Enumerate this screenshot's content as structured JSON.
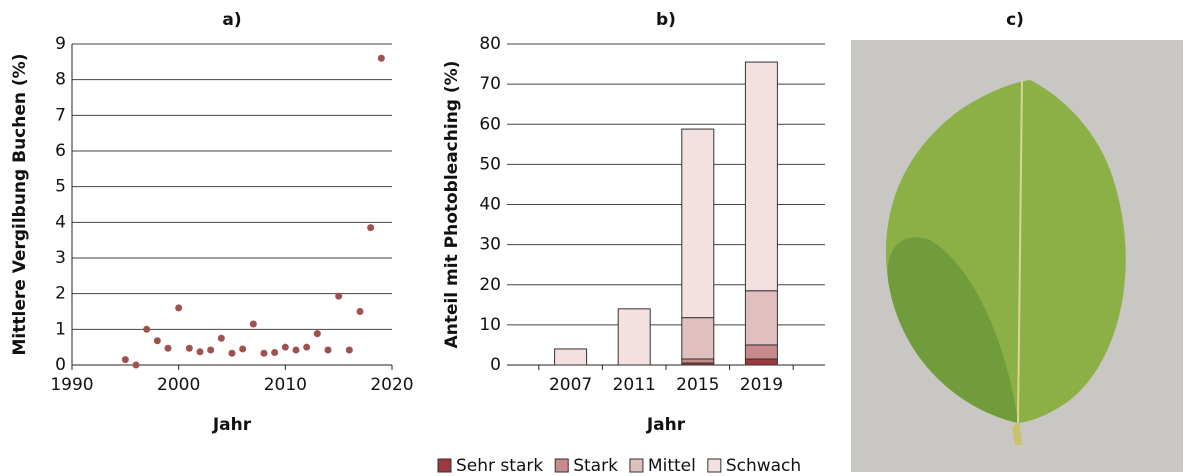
{
  "chart_data": [
    {
      "type": "scatter",
      "title": "a)",
      "xlabel": "Jahr",
      "ylabel": "Mittlere Vergilbung Buchen (%)",
      "x": [
        1995,
        1996,
        1997,
        1998,
        1999,
        2000,
        2001,
        2002,
        2003,
        2004,
        2005,
        2006,
        2007,
        2008,
        2009,
        2010,
        2011,
        2012,
        2013,
        2014,
        2015,
        2016,
        2017,
        2018,
        2019
      ],
      "values": [
        0.15,
        0.0,
        1.0,
        0.68,
        0.47,
        1.6,
        0.47,
        0.37,
        0.42,
        0.75,
        0.33,
        0.45,
        1.15,
        0.33,
        0.35,
        0.5,
        0.42,
        0.5,
        0.88,
        0.42,
        1.93,
        0.42,
        1.5,
        3.85,
        8.6
      ],
      "color": "#a0504f",
      "xlim": [
        1990,
        2020
      ],
      "xticks": [
        1990,
        2000,
        2010,
        2020
      ],
      "ylim": [
        0,
        9
      ],
      "yticks": [
        0,
        1,
        2,
        3,
        4,
        5,
        6,
        7,
        8,
        9
      ],
      "grid": true
    },
    {
      "type": "bar",
      "stacked": true,
      "title": "b)",
      "xlabel": "Jahr",
      "ylabel": "Anteil mit Photobleaching (%)",
      "categories": [
        "2007",
        "2011",
        "2015",
        "2019"
      ],
      "series": [
        {
          "name": "Sehr stark",
          "color": "#9e3a3f",
          "values": [
            0,
            0,
            0.5,
            1.5
          ]
        },
        {
          "name": "Stark",
          "color": "#c98a8c",
          "values": [
            0,
            0,
            1,
            3.5
          ]
        },
        {
          "name": "Mittel",
          "color": "#e2bfbf",
          "values": [
            0,
            0,
            10.3,
            13.5
          ]
        },
        {
          "name": "Schwach",
          "color": "#f3e1e1",
          "values": [
            4,
            14,
            47,
            57
          ]
        }
      ],
      "ylim": [
        0,
        80
      ],
      "yticks": [
        0,
        10,
        20,
        30,
        40,
        50,
        60,
        70,
        80
      ],
      "grid": true,
      "legend": "bottom"
    }
  ],
  "image": {
    "title": "c)"
  }
}
